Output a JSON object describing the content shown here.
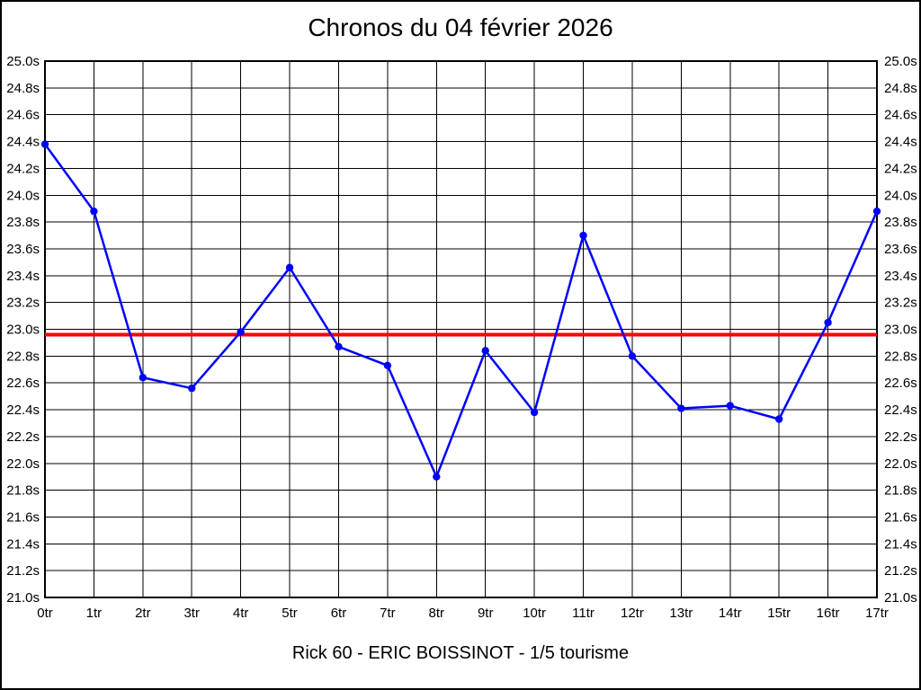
{
  "window": {
    "background": "#ffffff",
    "frame_color": "#000000"
  },
  "chart_data": {
    "type": "line",
    "title": "Chronos du 04 février 2026",
    "footer": "Rick 60 - ERIC BOISSINOT - 1/5 tourisme",
    "xlabel": "",
    "ylabel": "",
    "categories": [
      "0tr",
      "1tr",
      "2tr",
      "3tr",
      "4tr",
      "5tr",
      "6tr",
      "7tr",
      "8tr",
      "9tr",
      "10tr",
      "11tr",
      "12tr",
      "13tr",
      "14tr",
      "15tr",
      "16tr",
      "17tr"
    ],
    "series": [
      {
        "color": "#0000ff",
        "marker": "circle",
        "values": [
          24.38,
          23.88,
          22.64,
          22.56,
          22.98,
          23.46,
          22.87,
          22.73,
          21.9,
          22.84,
          22.38,
          23.7,
          22.8,
          22.41,
          22.43,
          22.33,
          23.05,
          23.88
        ]
      }
    ],
    "reference_line": {
      "value": 22.96,
      "color": "#ff0000"
    },
    "ylim": [
      21.0,
      25.0
    ],
    "y_tick_step": 0.2,
    "y_tick_labels": [
      "25.0s",
      "24.8s",
      "24.6s",
      "24.4s",
      "24.2s",
      "24.0s",
      "23.8s",
      "23.6s",
      "23.4s",
      "23.2s",
      "23.0s",
      "22.8s",
      "22.6s",
      "22.4s",
      "22.2s",
      "22.0s",
      "21.8s",
      "21.6s",
      "21.4s",
      "21.2s",
      "21.0s"
    ],
    "grid": true,
    "grid_color": "#000000",
    "y_labels_both_sides": true,
    "legend": "none"
  }
}
